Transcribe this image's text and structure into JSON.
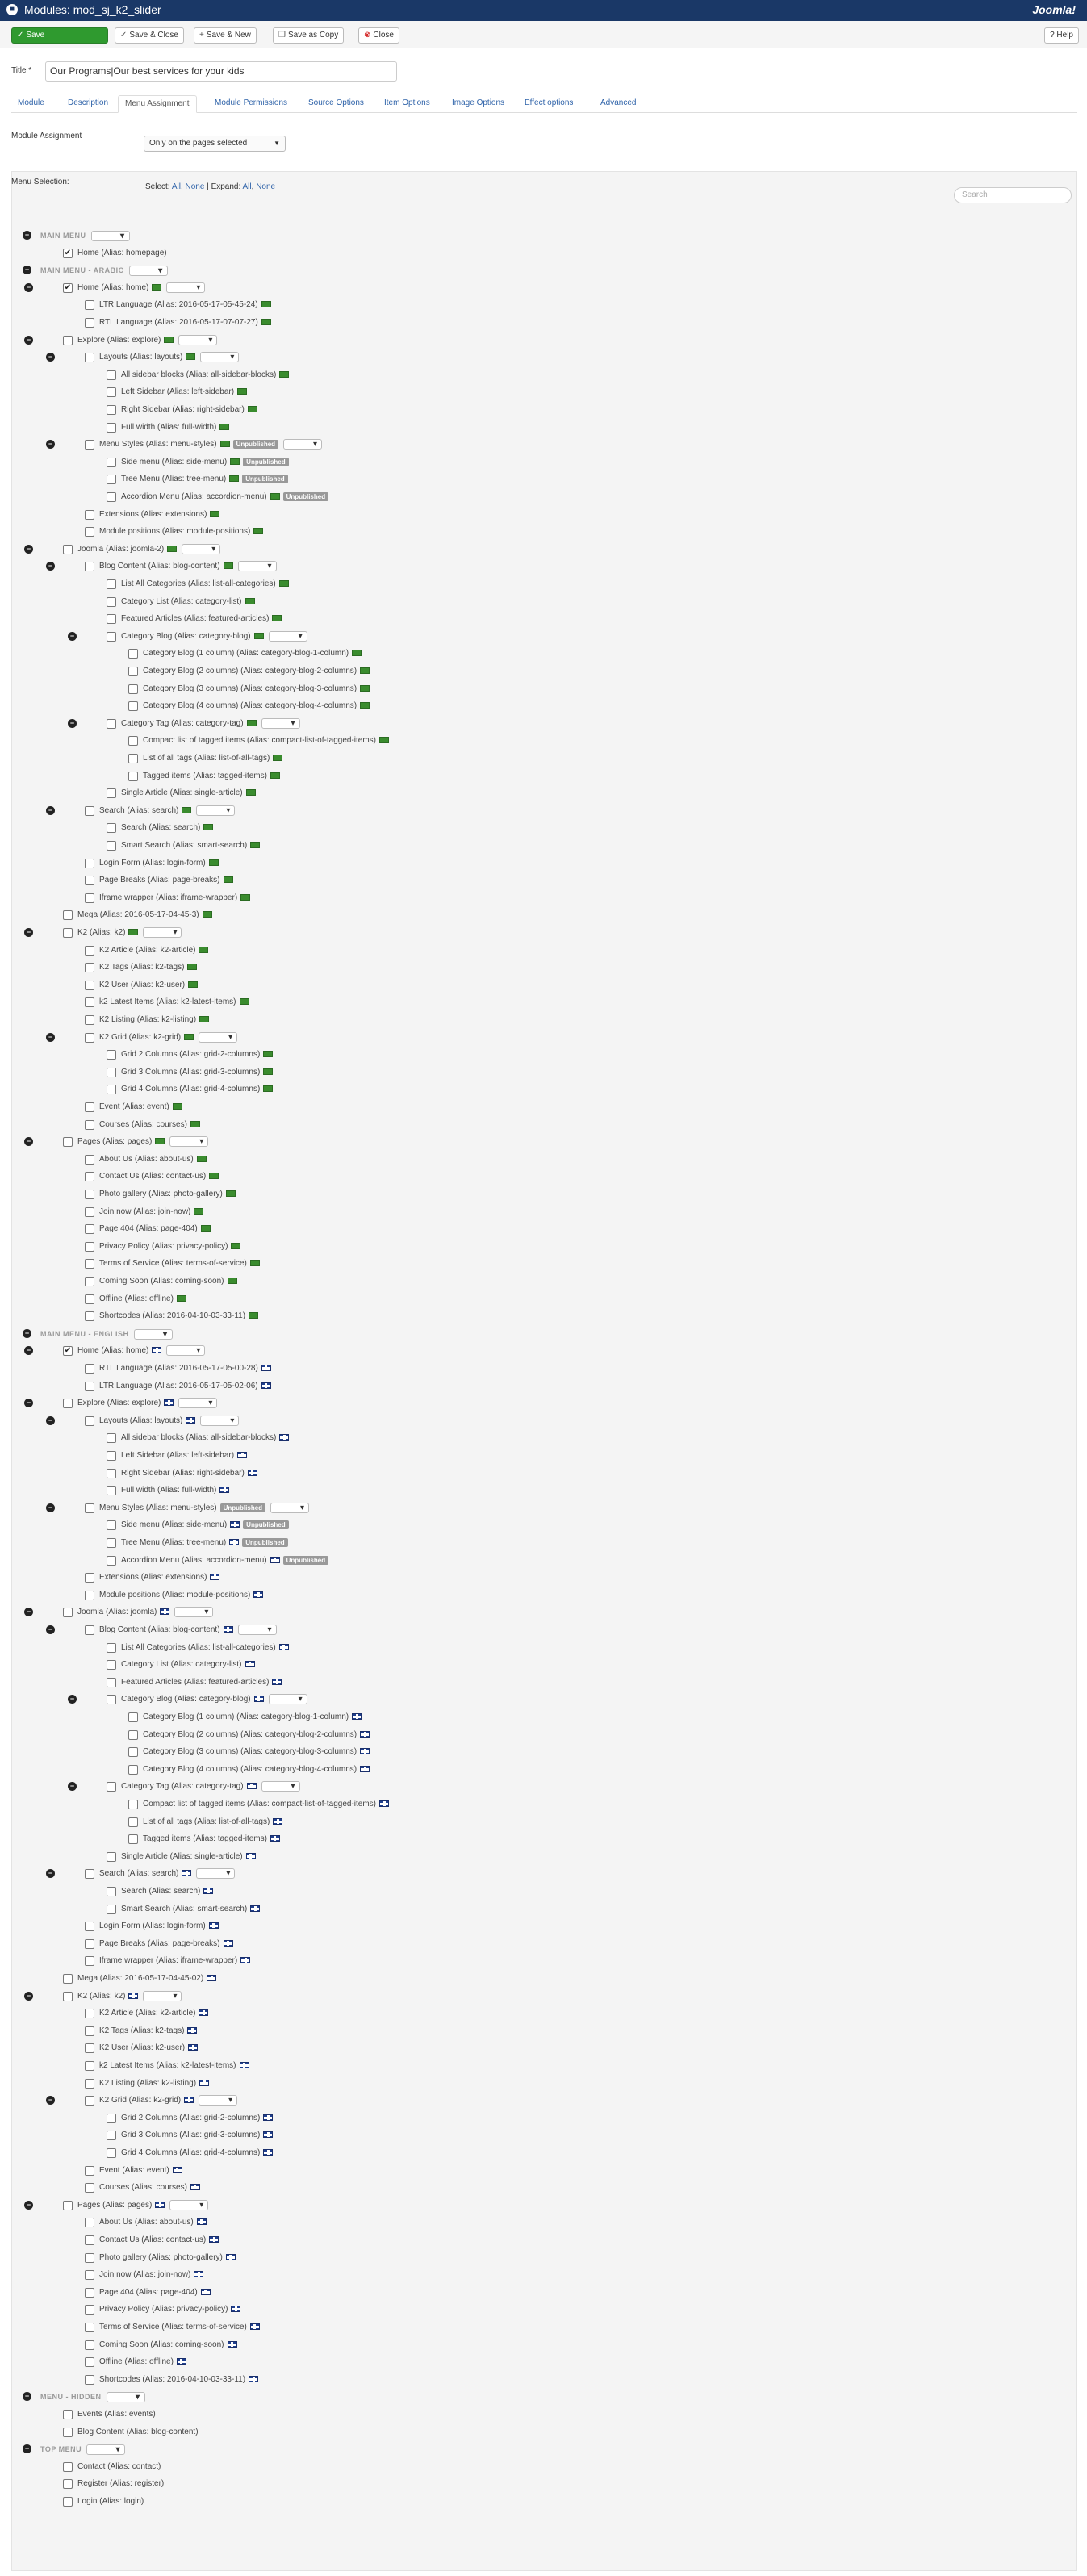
{
  "header": {
    "page_title": "Modules: mod_sj_k2_slider",
    "logo_text": "Joomla!"
  },
  "toolbar": {
    "save": "Save",
    "save_close": "Save & Close",
    "save_new": "Save & New",
    "save_copy": "Save as Copy",
    "close": "Close",
    "help": "Help",
    "save_color": "#2f9a2f"
  },
  "form": {
    "title_label": "Title *",
    "title_value": "Our Programs|Our best services for your kids",
    "assignment_label": "Module Assignment",
    "assignment_value": "Only on the pages selected",
    "menu_selection_label": "Menu Selection:",
    "select_prefix": "Select:",
    "all": "All",
    "none": "None",
    "expand_prefix": "Expand:",
    "search_placeholder": "Search"
  },
  "tabs": [
    "Module",
    "Description",
    "Menu Assignment",
    "Module Permissions",
    "Source Options",
    "Item Options",
    "Image Options",
    "Effect options",
    "Advanced"
  ],
  "active_tab": "Menu Assignment",
  "unpublished_label": "Unpublished",
  "tree": [
    {
      "t": "h",
      "text": "MAIN MENU"
    },
    {
      "t": "i",
      "d": 1,
      "text": "Home (Alias: homepage)",
      "checked": true
    },
    {
      "t": "h",
      "text": "MAIN MENU - ARABIC"
    },
    {
      "t": "i",
      "d": 1,
      "text": "Home (Alias: home)",
      "checked": true,
      "flag": "ar",
      "toggle": true
    },
    {
      "t": "i",
      "d": 2,
      "text": "LTR Language (Alias: 2016-05-17-05-45-24)",
      "flag": "ar"
    },
    {
      "t": "i",
      "d": 2,
      "text": "RTL Language (Alias: 2016-05-17-07-07-27)",
      "flag": "ar"
    },
    {
      "t": "i",
      "d": 1,
      "text": "Explore (Alias: explore)",
      "flag": "ar",
      "toggle": true
    },
    {
      "t": "i",
      "d": 2,
      "text": "Layouts (Alias: layouts)",
      "flag": "ar",
      "toggle": true
    },
    {
      "t": "i",
      "d": 3,
      "text": "All sidebar blocks (Alias: all-sidebar-blocks)",
      "flag": "ar"
    },
    {
      "t": "i",
      "d": 3,
      "text": "Left Sidebar (Alias: left-sidebar)",
      "flag": "ar"
    },
    {
      "t": "i",
      "d": 3,
      "text": "Right Sidebar (Alias: right-sidebar)",
      "flag": "ar"
    },
    {
      "t": "i",
      "d": 3,
      "text": "Full width (Alias: full-width)",
      "flag": "ar"
    },
    {
      "t": "i",
      "d": 2,
      "text": "Menu Styles (Alias: menu-styles)",
      "flag": "ar",
      "toggle": true,
      "unp": true
    },
    {
      "t": "i",
      "d": 3,
      "text": "Side menu (Alias: side-menu)",
      "flag": "ar",
      "unp": true
    },
    {
      "t": "i",
      "d": 3,
      "text": "Tree Menu (Alias: tree-menu)",
      "flag": "ar",
      "unp": true
    },
    {
      "t": "i",
      "d": 3,
      "text": "Accordion Menu (Alias: accordion-menu)",
      "flag": "ar",
      "unp": true
    },
    {
      "t": "i",
      "d": 2,
      "text": "Extensions (Alias: extensions)",
      "flag": "ar"
    },
    {
      "t": "i",
      "d": 2,
      "text": "Module positions (Alias: module-positions)",
      "flag": "ar"
    },
    {
      "t": "i",
      "d": 1,
      "text": "Joomla (Alias: joomla-2)",
      "flag": "ar",
      "toggle": true
    },
    {
      "t": "i",
      "d": 2,
      "text": "Blog Content (Alias: blog-content)",
      "flag": "ar",
      "toggle": true
    },
    {
      "t": "i",
      "d": 3,
      "text": "List All Categories (Alias: list-all-categories)",
      "flag": "ar"
    },
    {
      "t": "i",
      "d": 3,
      "text": "Category List (Alias: category-list)",
      "flag": "ar"
    },
    {
      "t": "i",
      "d": 3,
      "text": "Featured Articles (Alias: featured-articles)",
      "flag": "ar"
    },
    {
      "t": "i",
      "d": 3,
      "text": "Category Blog (Alias: category-blog)",
      "flag": "ar",
      "toggle": true
    },
    {
      "t": "i",
      "d": 4,
      "text": "Category Blog (1 column) (Alias: category-blog-1-column)",
      "flag": "ar"
    },
    {
      "t": "i",
      "d": 4,
      "text": "Category Blog (2 columns) (Alias: category-blog-2-columns)",
      "flag": "ar"
    },
    {
      "t": "i",
      "d": 4,
      "text": "Category Blog (3 columns) (Alias: category-blog-3-columns)",
      "flag": "ar"
    },
    {
      "t": "i",
      "d": 4,
      "text": "Category Blog (4 columns) (Alias: category-blog-4-columns)",
      "flag": "ar"
    },
    {
      "t": "i",
      "d": 3,
      "text": "Category Tag (Alias: category-tag)",
      "flag": "ar",
      "toggle": true
    },
    {
      "t": "i",
      "d": 4,
      "text": "Compact list of tagged items (Alias: compact-list-of-tagged-items)",
      "flag": "ar"
    },
    {
      "t": "i",
      "d": 4,
      "text": "List of all tags (Alias: list-of-all-tags)",
      "flag": "ar"
    },
    {
      "t": "i",
      "d": 4,
      "text": "Tagged items (Alias: tagged-items)",
      "flag": "ar"
    },
    {
      "t": "i",
      "d": 3,
      "text": "Single Article (Alias: single-article)",
      "flag": "ar"
    },
    {
      "t": "i",
      "d": 2,
      "text": "Search (Alias: search)",
      "flag": "ar",
      "toggle": true
    },
    {
      "t": "i",
      "d": 3,
      "text": "Search (Alias: search)",
      "flag": "ar"
    },
    {
      "t": "i",
      "d": 3,
      "text": "Smart Search (Alias: smart-search)",
      "flag": "ar"
    },
    {
      "t": "i",
      "d": 2,
      "text": "Login Form (Alias: login-form)",
      "flag": "ar"
    },
    {
      "t": "i",
      "d": 2,
      "text": "Page Breaks (Alias: page-breaks)",
      "flag": "ar"
    },
    {
      "t": "i",
      "d": 2,
      "text": "Iframe wrapper (Alias: iframe-wrapper)",
      "flag": "ar"
    },
    {
      "t": "i",
      "d": 1,
      "text": "Mega (Alias: 2016-05-17-04-45-3)",
      "flag": "ar"
    },
    {
      "t": "i",
      "d": 1,
      "text": "K2 (Alias: k2)",
      "flag": "ar",
      "toggle": true
    },
    {
      "t": "i",
      "d": 2,
      "text": "K2 Article (Alias: k2-article)",
      "flag": "ar"
    },
    {
      "t": "i",
      "d": 2,
      "text": "K2 Tags (Alias: k2-tags)",
      "flag": "ar"
    },
    {
      "t": "i",
      "d": 2,
      "text": "K2 User (Alias: k2-user)",
      "flag": "ar"
    },
    {
      "t": "i",
      "d": 2,
      "text": "k2 Latest Items (Alias: k2-latest-items)",
      "flag": "ar"
    },
    {
      "t": "i",
      "d": 2,
      "text": "K2 Listing (Alias: k2-listing)",
      "flag": "ar"
    },
    {
      "t": "i",
      "d": 2,
      "text": "K2 Grid (Alias: k2-grid)",
      "flag": "ar",
      "toggle": true
    },
    {
      "t": "i",
      "d": 3,
      "text": "Grid 2 Columns (Alias: grid-2-columns)",
      "flag": "ar"
    },
    {
      "t": "i",
      "d": 3,
      "text": "Grid 3 Columns (Alias: grid-3-columns)",
      "flag": "ar"
    },
    {
      "t": "i",
      "d": 3,
      "text": "Grid 4 Columns (Alias: grid-4-columns)",
      "flag": "ar"
    },
    {
      "t": "i",
      "d": 2,
      "text": "Event (Alias: event)",
      "flag": "ar"
    },
    {
      "t": "i",
      "d": 2,
      "text": "Courses (Alias: courses)",
      "flag": "ar"
    },
    {
      "t": "i",
      "d": 1,
      "text": "Pages (Alias: pages)",
      "flag": "ar",
      "toggle": true
    },
    {
      "t": "i",
      "d": 2,
      "text": "About Us (Alias: about-us)",
      "flag": "ar"
    },
    {
      "t": "i",
      "d": 2,
      "text": "Contact Us (Alias: contact-us)",
      "flag": "ar"
    },
    {
      "t": "i",
      "d": 2,
      "text": "Photo gallery (Alias: photo-gallery)",
      "flag": "ar"
    },
    {
      "t": "i",
      "d": 2,
      "text": "Join now (Alias: join-now)",
      "flag": "ar"
    },
    {
      "t": "i",
      "d": 2,
      "text": "Page 404 (Alias: page-404)",
      "flag": "ar"
    },
    {
      "t": "i",
      "d": 2,
      "text": "Privacy Policy (Alias: privacy-policy)",
      "flag": "ar"
    },
    {
      "t": "i",
      "d": 2,
      "text": "Terms of Service (Alias: terms-of-service)",
      "flag": "ar"
    },
    {
      "t": "i",
      "d": 2,
      "text": "Coming Soon (Alias: coming-soon)",
      "flag": "ar"
    },
    {
      "t": "i",
      "d": 2,
      "text": "Offline (Alias: offline)",
      "flag": "ar"
    },
    {
      "t": "i",
      "d": 2,
      "text": "Shortcodes (Alias: 2016-04-10-03-33-11)",
      "flag": "ar"
    },
    {
      "t": "h",
      "text": "MAIN MENU - ENGLISH"
    },
    {
      "t": "i",
      "d": 1,
      "text": "Home (Alias: home)",
      "checked": true,
      "flag": "en",
      "toggle": true
    },
    {
      "t": "i",
      "d": 2,
      "text": "RTL Language (Alias: 2016-05-17-05-00-28)",
      "flag": "en"
    },
    {
      "t": "i",
      "d": 2,
      "text": "LTR Language (Alias: 2016-05-17-05-02-06)",
      "flag": "en"
    },
    {
      "t": "i",
      "d": 1,
      "text": "Explore (Alias: explore)",
      "flag": "en",
      "toggle": true
    },
    {
      "t": "i",
      "d": 2,
      "text": "Layouts (Alias: layouts)",
      "flag": "en",
      "toggle": true
    },
    {
      "t": "i",
      "d": 3,
      "text": "All sidebar blocks (Alias: all-sidebar-blocks)",
      "flag": "en"
    },
    {
      "t": "i",
      "d": 3,
      "text": "Left Sidebar (Alias: left-sidebar)",
      "flag": "en"
    },
    {
      "t": "i",
      "d": 3,
      "text": "Right Sidebar (Alias: right-sidebar)",
      "flag": "en"
    },
    {
      "t": "i",
      "d": 3,
      "text": "Full width (Alias: full-width)",
      "flag": "en"
    },
    {
      "t": "i",
      "d": 2,
      "text": "Menu Styles (Alias: menu-styles)",
      "unp": true,
      "toggle": true
    },
    {
      "t": "i",
      "d": 3,
      "text": "Side menu (Alias: side-menu)",
      "flag": "en",
      "unp": true
    },
    {
      "t": "i",
      "d": 3,
      "text": "Tree Menu (Alias: tree-menu)",
      "flag": "en",
      "unp": true
    },
    {
      "t": "i",
      "d": 3,
      "text": "Accordion Menu (Alias: accordion-menu)",
      "flag": "en",
      "unp": true
    },
    {
      "t": "i",
      "d": 2,
      "text": "Extensions (Alias: extensions)",
      "flag": "en"
    },
    {
      "t": "i",
      "d": 2,
      "text": "Module positions (Alias: module-positions)",
      "flag": "en"
    },
    {
      "t": "i",
      "d": 1,
      "text": "Joomla (Alias: joomla)",
      "flag": "en",
      "toggle": true
    },
    {
      "t": "i",
      "d": 2,
      "text": "Blog Content (Alias: blog-content)",
      "flag": "en",
      "toggle": true
    },
    {
      "t": "i",
      "d": 3,
      "text": "List All Categories (Alias: list-all-categories)",
      "flag": "en"
    },
    {
      "t": "i",
      "d": 3,
      "text": "Category List (Alias: category-list)",
      "flag": "en"
    },
    {
      "t": "i",
      "d": 3,
      "text": "Featured Articles (Alias: featured-articles)",
      "flag": "en"
    },
    {
      "t": "i",
      "d": 3,
      "text": "Category Blog (Alias: category-blog)",
      "flag": "en",
      "toggle": true
    },
    {
      "t": "i",
      "d": 4,
      "text": "Category Blog (1 column) (Alias: category-blog-1-column)",
      "flag": "en"
    },
    {
      "t": "i",
      "d": 4,
      "text": "Category Blog (2 columns) (Alias: category-blog-2-columns)",
      "flag": "en"
    },
    {
      "t": "i",
      "d": 4,
      "text": "Category Blog (3 columns) (Alias: category-blog-3-columns)",
      "flag": "en"
    },
    {
      "t": "i",
      "d": 4,
      "text": "Category Blog (4 columns) (Alias: category-blog-4-columns)",
      "flag": "en"
    },
    {
      "t": "i",
      "d": 3,
      "text": "Category Tag (Alias: category-tag)",
      "flag": "en",
      "toggle": true
    },
    {
      "t": "i",
      "d": 4,
      "text": "Compact list of tagged items (Alias: compact-list-of-tagged-items)",
      "flag": "en"
    },
    {
      "t": "i",
      "d": 4,
      "text": "List of all tags (Alias: list-of-all-tags)",
      "flag": "en"
    },
    {
      "t": "i",
      "d": 4,
      "text": "Tagged items (Alias: tagged-items)",
      "flag": "en"
    },
    {
      "t": "i",
      "d": 3,
      "text": "Single Article (Alias: single-article)",
      "flag": "en"
    },
    {
      "t": "i",
      "d": 2,
      "text": "Search (Alias: search)",
      "flag": "en",
      "toggle": true
    },
    {
      "t": "i",
      "d": 3,
      "text": "Search (Alias: search)",
      "flag": "en"
    },
    {
      "t": "i",
      "d": 3,
      "text": "Smart Search (Alias: smart-search)",
      "flag": "en"
    },
    {
      "t": "i",
      "d": 2,
      "text": "Login Form (Alias: login-form)",
      "flag": "en"
    },
    {
      "t": "i",
      "d": 2,
      "text": "Page Breaks (Alias: page-breaks)",
      "flag": "en"
    },
    {
      "t": "i",
      "d": 2,
      "text": "Iframe wrapper (Alias: iframe-wrapper)",
      "flag": "en"
    },
    {
      "t": "i",
      "d": 1,
      "text": "Mega (Alias: 2016-05-17-04-45-02)",
      "flag": "en"
    },
    {
      "t": "i",
      "d": 1,
      "text": "K2 (Alias: k2)",
      "flag": "en",
      "toggle": true
    },
    {
      "t": "i",
      "d": 2,
      "text": "K2 Article (Alias: k2-article)",
      "flag": "en"
    },
    {
      "t": "i",
      "d": 2,
      "text": "K2 Tags (Alias: k2-tags)",
      "flag": "en"
    },
    {
      "t": "i",
      "d": 2,
      "text": "K2 User (Alias: k2-user)",
      "flag": "en"
    },
    {
      "t": "i",
      "d": 2,
      "text": "k2 Latest Items (Alias: k2-latest-items)",
      "flag": "en"
    },
    {
      "t": "i",
      "d": 2,
      "text": "K2 Listing (Alias: k2-listing)",
      "flag": "en"
    },
    {
      "t": "i",
      "d": 2,
      "text": "K2 Grid (Alias: k2-grid)",
      "flag": "en",
      "toggle": true
    },
    {
      "t": "i",
      "d": 3,
      "text": "Grid 2 Columns (Alias: grid-2-columns)",
      "flag": "en"
    },
    {
      "t": "i",
      "d": 3,
      "text": "Grid 3 Columns (Alias: grid-3-columns)",
      "flag": "en"
    },
    {
      "t": "i",
      "d": 3,
      "text": "Grid 4 Columns (Alias: grid-4-columns)",
      "flag": "en"
    },
    {
      "t": "i",
      "d": 2,
      "text": "Event (Alias: event)",
      "flag": "en"
    },
    {
      "t": "i",
      "d": 2,
      "text": "Courses (Alias: courses)",
      "flag": "en"
    },
    {
      "t": "i",
      "d": 1,
      "text": "Pages (Alias: pages)",
      "flag": "en",
      "toggle": true
    },
    {
      "t": "i",
      "d": 2,
      "text": "About Us (Alias: about-us)",
      "flag": "en"
    },
    {
      "t": "i",
      "d": 2,
      "text": "Contact Us (Alias: contact-us)",
      "flag": "en"
    },
    {
      "t": "i",
      "d": 2,
      "text": "Photo gallery (Alias: photo-gallery)",
      "flag": "en"
    },
    {
      "t": "i",
      "d": 2,
      "text": "Join now (Alias: join-now)",
      "flag": "en"
    },
    {
      "t": "i",
      "d": 2,
      "text": "Page 404 (Alias: page-404)",
      "flag": "en"
    },
    {
      "t": "i",
      "d": 2,
      "text": "Privacy Policy (Alias: privacy-policy)",
      "flag": "en"
    },
    {
      "t": "i",
      "d": 2,
      "text": "Terms of Service (Alias: terms-of-service)",
      "flag": "en"
    },
    {
      "t": "i",
      "d": 2,
      "text": "Coming Soon (Alias: coming-soon)",
      "flag": "en"
    },
    {
      "t": "i",
      "d": 2,
      "text": "Offline (Alias: offline)",
      "flag": "en"
    },
    {
      "t": "i",
      "d": 2,
      "text": "Shortcodes (Alias: 2016-04-10-03-33-11)",
      "flag": "en"
    },
    {
      "t": "h",
      "text": "MENU - HIDDEN"
    },
    {
      "t": "i",
      "d": 1,
      "text": "Events (Alias: events)"
    },
    {
      "t": "i",
      "d": 1,
      "text": "Blog Content (Alias: blog-content)"
    },
    {
      "t": "h",
      "text": "TOP MENU"
    },
    {
      "t": "i",
      "d": 1,
      "text": "Contact (Alias: contact)"
    },
    {
      "t": "i",
      "d": 1,
      "text": "Register (Alias: register)"
    },
    {
      "t": "i",
      "d": 1,
      "text": "Login (Alias: login)"
    }
  ]
}
